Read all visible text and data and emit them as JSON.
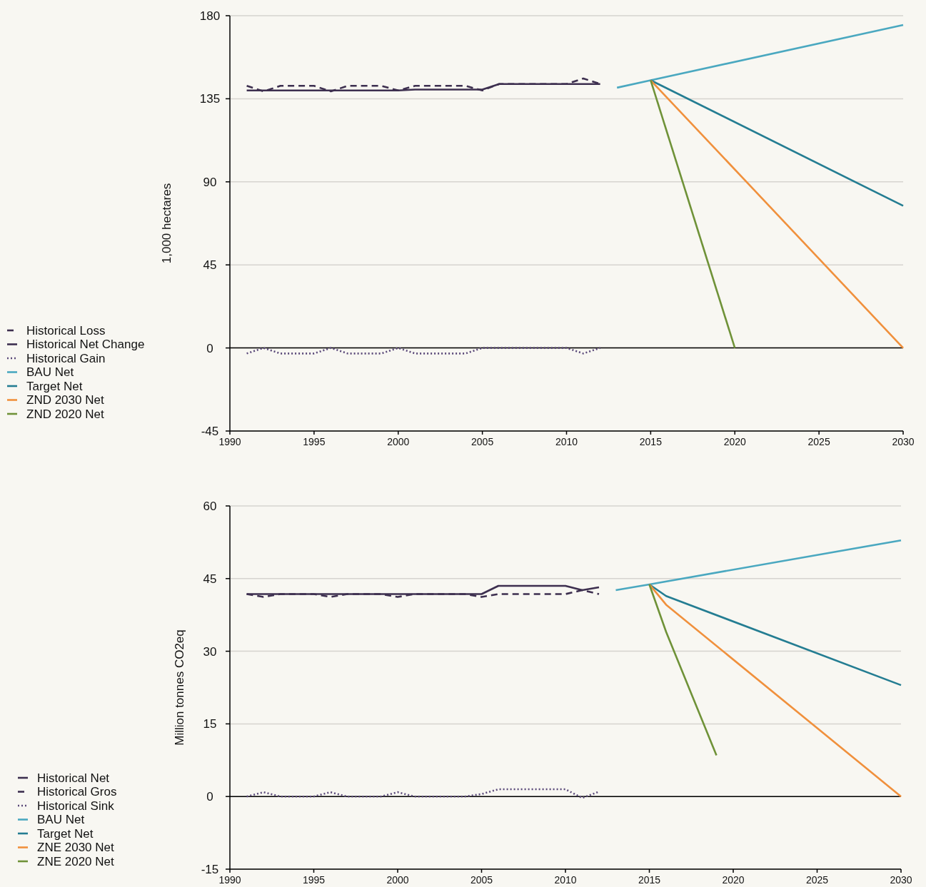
{
  "chart_data": [
    {
      "type": "line",
      "ylabel": "1,000 hectares",
      "xlim": [
        1990,
        2030
      ],
      "xticks": [
        1990,
        1995,
        2000,
        2005,
        2010,
        2015,
        2020,
        2025,
        2030
      ],
      "ylim": [
        -45,
        180
      ],
      "yticks": [
        -45,
        0,
        45,
        90,
        135,
        180
      ],
      "grid": "y",
      "legend": "left",
      "ref_lines": [
        {
          "axis": "y",
          "value": 0,
          "color": "#000000"
        }
      ],
      "series": [
        {
          "name": "Historical Loss",
          "color": "#3d2f4f",
          "line_style": "dashed",
          "x": [
            1991,
            1992,
            1993,
            1994,
            1995,
            1996,
            1997,
            1998,
            1999,
            2000,
            2001,
            2002,
            2003,
            2004,
            2005,
            2006,
            2007,
            2008,
            2009,
            2010,
            2011,
            2012
          ],
          "values": [
            142,
            139,
            142,
            142,
            142,
            139,
            142,
            142,
            142,
            139.5,
            142,
            142,
            142,
            142,
            139.5,
            143,
            143,
            143,
            143,
            143,
            146,
            143
          ]
        },
        {
          "name": "Historical Net Change",
          "color": "#3d2f4f",
          "line_style": "solid",
          "x": [
            1991,
            1992,
            1993,
            1994,
            1995,
            1996,
            1997,
            1998,
            1999,
            2000,
            2001,
            2002,
            2003,
            2004,
            2005,
            2006,
            2007,
            2008,
            2009,
            2010,
            2011,
            2012
          ],
          "values": [
            139.5,
            139.5,
            139.5,
            139.5,
            139.5,
            139.5,
            139.5,
            139.5,
            139.5,
            139.5,
            140,
            140,
            140,
            140,
            140,
            143,
            143,
            143,
            143,
            143,
            143,
            143
          ]
        },
        {
          "name": "Historical Gain",
          "color": "#5b4a7a",
          "line_style": "dotted",
          "x": [
            1991,
            1992,
            1993,
            1994,
            1995,
            1996,
            1997,
            1998,
            1999,
            2000,
            2001,
            2002,
            2003,
            2004,
            2005,
            2006,
            2007,
            2008,
            2009,
            2010,
            2011,
            2012
          ],
          "values": [
            -3,
            0,
            -3,
            -3,
            -3,
            0,
            -3,
            -3,
            -3,
            0,
            -3,
            -3,
            -3,
            -3,
            0,
            0,
            0,
            0,
            0,
            0,
            -3,
            0
          ]
        },
        {
          "name": "BAU Net",
          "color": "#4aa8c0",
          "line_style": "solid",
          "x": [
            2013,
            2015,
            2030
          ],
          "values": [
            141,
            145,
            175
          ]
        },
        {
          "name": "Target Net",
          "color": "#247d92",
          "line_style": "solid",
          "x": [
            2015,
            2030
          ],
          "values": [
            145,
            77
          ]
        },
        {
          "name": "ZND 2030 Net",
          "color": "#f0903c",
          "line_style": "solid",
          "x": [
            2015,
            2030
          ],
          "values": [
            145,
            0
          ]
        },
        {
          "name": "ZND 2020 Net",
          "color": "#6f9238",
          "line_style": "solid",
          "x": [
            2015,
            2020
          ],
          "values": [
            145,
            0
          ]
        }
      ]
    },
    {
      "type": "line",
      "ylabel": "Million tonnes CO2eq",
      "xlim": [
        1990,
        2030
      ],
      "xticks": [
        1990,
        1995,
        2000,
        2005,
        2010,
        2015,
        2020,
        2025,
        2030
      ],
      "ylim": [
        -15,
        60
      ],
      "yticks": [
        -15,
        0,
        15,
        30,
        45,
        60
      ],
      "grid": "y",
      "legend": "left",
      "ref_lines": [
        {
          "axis": "y",
          "value": 0,
          "color": "#000000"
        }
      ],
      "series": [
        {
          "name": "Historical Net",
          "color": "#3d2f4f",
          "line_style": "solid",
          "x": [
            1991,
            1992,
            1993,
            1994,
            1995,
            1996,
            1997,
            1998,
            1999,
            2000,
            2001,
            2002,
            2003,
            2004,
            2005,
            2006,
            2007,
            2008,
            2009,
            2010,
            2011,
            2012
          ],
          "values": [
            41.8,
            41.8,
            41.8,
            41.8,
            41.8,
            41.8,
            41.8,
            41.8,
            41.8,
            41.8,
            41.8,
            41.8,
            41.8,
            41.8,
            41.8,
            43.5,
            43.5,
            43.5,
            43.5,
            43.5,
            42.6,
            43.2
          ]
        },
        {
          "name": "Historical Gros",
          "color": "#3d2f4f",
          "line_style": "dashed",
          "x": [
            1991,
            1992,
            1993,
            1994,
            1995,
            1996,
            1997,
            1998,
            1999,
            2000,
            2001,
            2002,
            2003,
            2004,
            2005,
            2006,
            2007,
            2008,
            2009,
            2010,
            2011,
            2012
          ],
          "values": [
            41.8,
            41.2,
            41.8,
            41.8,
            41.8,
            41.2,
            41.8,
            41.8,
            41.8,
            41.2,
            41.8,
            41.8,
            41.8,
            41.8,
            41.2,
            41.8,
            41.8,
            41.8,
            41.8,
            41.8,
            42.6,
            41.8
          ]
        },
        {
          "name": "Historical Sink",
          "color": "#5b4a7a",
          "line_style": "dotted",
          "x": [
            1991,
            1992,
            1993,
            1994,
            1995,
            1996,
            1997,
            1998,
            1999,
            2000,
            2001,
            2002,
            2003,
            2004,
            2005,
            2006,
            2007,
            2008,
            2009,
            2010,
            2011,
            2012
          ],
          "values": [
            0,
            0.9,
            0,
            0,
            0,
            0.9,
            0,
            0,
            0,
            0.9,
            0,
            0,
            0,
            0,
            0.5,
            1.5,
            1.5,
            1.5,
            1.5,
            1.5,
            -0.3,
            1
          ]
        },
        {
          "name": "BAU Net",
          "color": "#4aa8c0",
          "line_style": "solid",
          "x": [
            2013,
            2015,
            2030
          ],
          "values": [
            42.6,
            43.8,
            52.9
          ]
        },
        {
          "name": "Target Net",
          "color": "#247d92",
          "line_style": "solid",
          "x": [
            2015,
            2016,
            2030
          ],
          "values": [
            43.8,
            41.4,
            23
          ]
        },
        {
          "name": "ZNE 2030 Net",
          "color": "#f0903c",
          "line_style": "solid",
          "x": [
            2015,
            2016,
            2030
          ],
          "values": [
            43.8,
            39.6,
            0
          ]
        },
        {
          "name": "ZNE 2020 Net",
          "color": "#6f9238",
          "line_style": "solid",
          "x": [
            2015,
            2016,
            2019
          ],
          "values": [
            43.8,
            34,
            8.5
          ]
        }
      ]
    }
  ]
}
